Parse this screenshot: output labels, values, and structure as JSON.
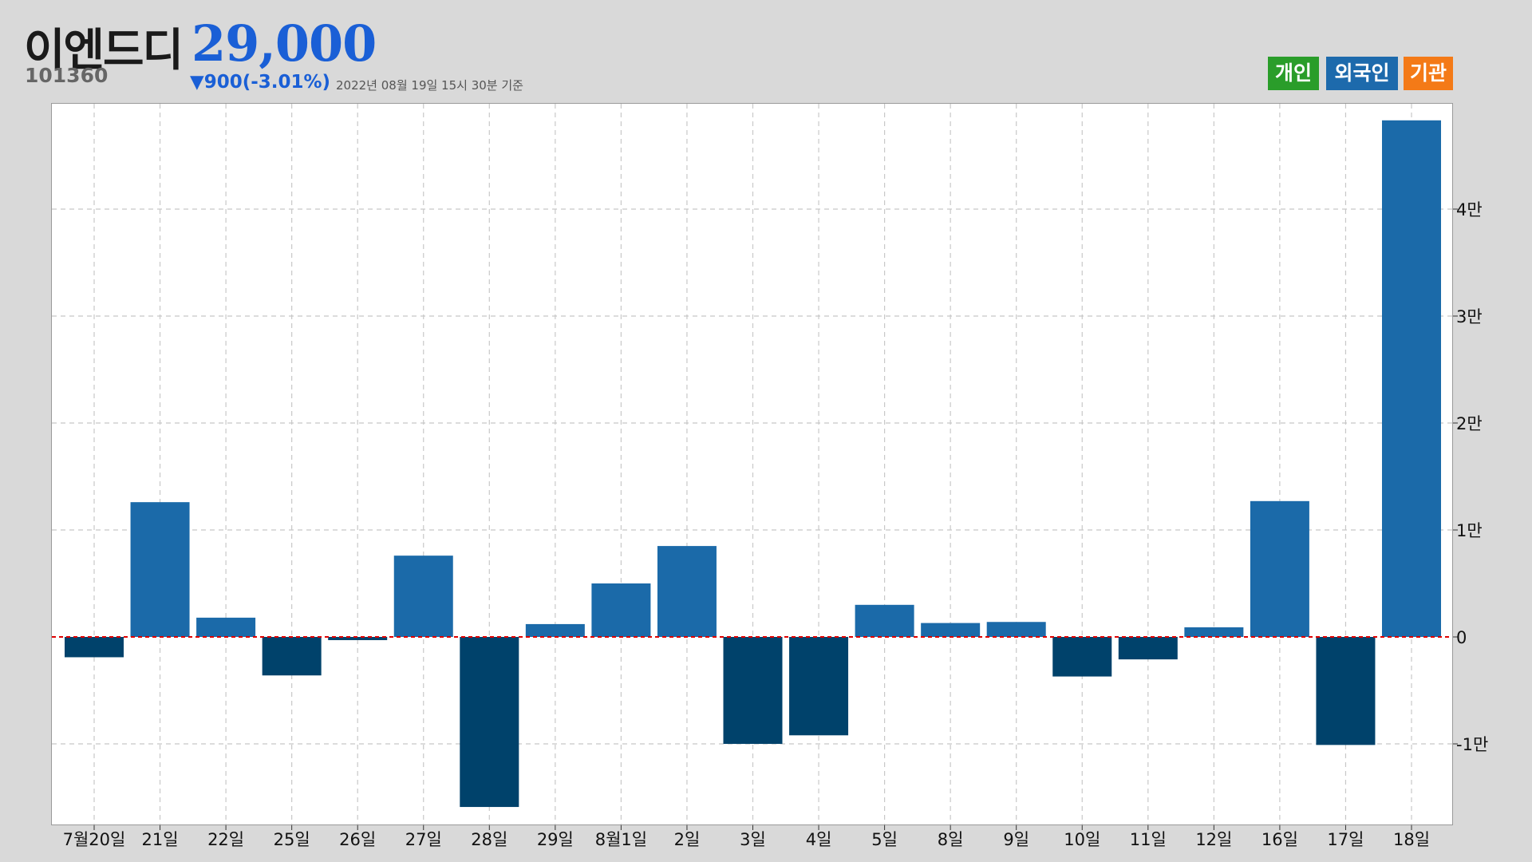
{
  "header": {
    "name": "이엔드디",
    "code": "101360",
    "price": "29,000",
    "change": "▼900(-3.01%)",
    "as_of": "2022년 08월 19일 15시 30분 기준"
  },
  "legend": [
    {
      "label": "개인",
      "color": "#2a9d2a"
    },
    {
      "label": "외국인",
      "color": "#1d6aac"
    },
    {
      "label": "기관",
      "color": "#f47a17"
    }
  ],
  "colors": {
    "positive_bar": "#1b6aa9",
    "negative_bar": "#00426b",
    "zero_line": "#e00000",
    "grid": "#c8c8c8"
  },
  "chart_data": {
    "type": "bar",
    "categories": [
      "7월20일",
      "21일",
      "22일",
      "25일",
      "26일",
      "27일",
      "28일",
      "29일",
      "8월1일",
      "2일",
      "3일",
      "4일",
      "5일",
      "8일",
      "9일",
      "10일",
      "11일",
      "12일",
      "16일",
      "17일",
      "18일"
    ],
    "series": [
      {
        "name": "외국인",
        "values": [
          -1900,
          12600,
          1800,
          -3600,
          -300,
          7600,
          -15900,
          1200,
          5000,
          8500,
          -10000,
          -9200,
          3000,
          1300,
          1400,
          -3700,
          -2100,
          900,
          12700,
          -10100,
          48300
        ]
      }
    ],
    "y_ticks": [
      {
        "value": -10000,
        "label": "-1만"
      },
      {
        "value": 0,
        "label": "0"
      },
      {
        "value": 10000,
        "label": "1만"
      },
      {
        "value": 20000,
        "label": "2만"
      },
      {
        "value": 30000,
        "label": "3만"
      },
      {
        "value": 40000,
        "label": "4만"
      }
    ],
    "ylim": [
      -17500,
      49900
    ],
    "y_axis_side": "right",
    "grid": true,
    "zero_line": "dashed-red",
    "legend_position": "top-right",
    "title": "",
    "xlabel": "",
    "ylabel": ""
  }
}
